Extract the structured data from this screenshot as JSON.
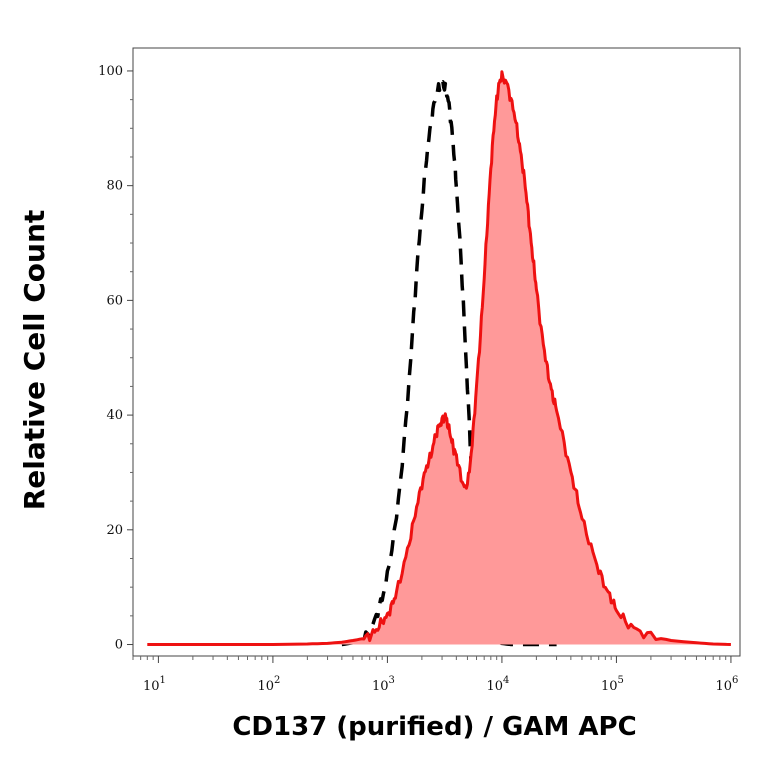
{
  "chart_data": {
    "type": "area",
    "title": "",
    "xlabel": "CD137 (purified) / GAM APC",
    "ylabel": "Relative Cell Count",
    "x_scale": "log",
    "xlim": [
      6,
      1200000
    ],
    "ylim": [
      -2,
      104
    ],
    "x_ticks": [
      {
        "value": 10,
        "base": "10",
        "exp": "1"
      },
      {
        "value": 100,
        "base": "10",
        "exp": "2"
      },
      {
        "value": 1000,
        "base": "10",
        "exp": "3"
      },
      {
        "value": 10000,
        "base": "10",
        "exp": "4"
      },
      {
        "value": 100000,
        "base": "10",
        "exp": "5"
      },
      {
        "value": 1000000,
        "base": "10",
        "exp": "6"
      }
    ],
    "y_ticks": [
      {
        "value": 0,
        "label": "0"
      },
      {
        "value": 20,
        "label": "20"
      },
      {
        "value": 40,
        "label": "40"
      },
      {
        "value": 60,
        "label": "60"
      },
      {
        "value": 80,
        "label": "80"
      },
      {
        "value": 100,
        "label": "100"
      }
    ],
    "grid": false,
    "series": [
      {
        "style": "dashed-black-line",
        "color": "#000000",
        "x": [
          400,
          500,
          600,
          700,
          800,
          900,
          1000,
          1200,
          1400,
          1600,
          1800,
          2000,
          2200,
          2400,
          2600,
          2800,
          3000,
          3200,
          3400,
          3600,
          3800,
          4000,
          4400,
          4800,
          5200,
          5600,
          6000,
          6500,
          7000,
          7500,
          8000,
          9000,
          10000,
          12000,
          15000,
          20000,
          30000
        ],
        "y": [
          0,
          0.3,
          0.8,
          2,
          5,
          8,
          12,
          22,
          35,
          50,
          65,
          76,
          85,
          91,
          95,
          97,
          98,
          97,
          95,
          91,
          86,
          80,
          67,
          52,
          38,
          25,
          15,
          8,
          4,
          2,
          1,
          0.5,
          0.2,
          0,
          0,
          0,
          0
        ]
      },
      {
        "style": "red-filled-area",
        "color": "#ee1111",
        "fill": "#ff9999",
        "x": [
          8,
          50,
          100,
          200,
          300,
          400,
          500,
          600,
          700,
          800,
          900,
          1000,
          1100,
          1200,
          1400,
          1600,
          1800,
          2000,
          2200,
          2400,
          2600,
          2800,
          3000,
          3200,
          3400,
          3600,
          3800,
          4000,
          4400,
          4800,
          5200,
          5600,
          6000,
          6500,
          7000,
          7500,
          8000,
          8500,
          9000,
          9500,
          10000,
          11000,
          12000,
          13000,
          14000,
          15000,
          16000,
          17000,
          18000,
          19000,
          20000,
          22000,
          24000,
          26000,
          28000,
          30000,
          35000,
          40000,
          45000,
          50000,
          60000,
          70000,
          80000,
          90000,
          100000,
          120000,
          150000,
          200000,
          300000,
          500000,
          700000,
          1000000
        ],
        "y": [
          0,
          0,
          0,
          0.1,
          0.2,
          0.4,
          0.7,
          1,
          1.5,
          2.5,
          4,
          5,
          7,
          9,
          14,
          19,
          24,
          28,
          31,
          33,
          36,
          38,
          39,
          40,
          38,
          36,
          34,
          33,
          29,
          27,
          30,
          37,
          45,
          54,
          64,
          74,
          83,
          90,
          95,
          98,
          99,
          98,
          95,
          92,
          88,
          84,
          80,
          75,
          70,
          66,
          62,
          55,
          50,
          46,
          43,
          41,
          35,
          30,
          26,
          22,
          17,
          13,
          10,
          8,
          6,
          4,
          2.5,
          1.5,
          0.7,
          0.3,
          0.1,
          0
        ]
      }
    ]
  }
}
